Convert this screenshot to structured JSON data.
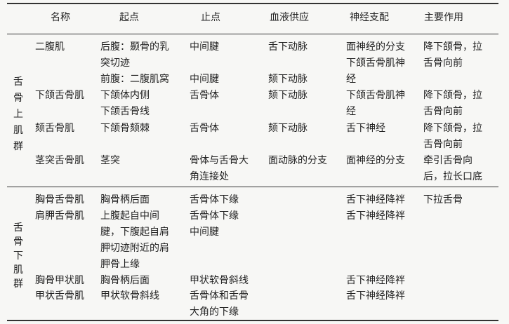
{
  "headers": [
    "名称",
    "起点",
    "止点",
    "血液供应",
    "神经支配",
    "主要作用"
  ],
  "groups": [
    {
      "label": [
        "舌",
        "骨",
        "上",
        "肌",
        "群"
      ],
      "rows": [
        {
          "name": "二腹肌",
          "origin": [
            "后腹：颞骨的乳",
            "突切迹",
            "前腹：二腹肌窝"
          ],
          "insertion": [
            "中间腱",
            "",
            "中间腱"
          ],
          "blood": [
            "舌下动脉",
            "",
            "颏下动脉"
          ],
          "nerve": [
            "面神经的分支",
            "下颌舌骨肌神",
            "经"
          ],
          "action": [
            "降下颌骨，拉",
            "舌骨向前"
          ]
        },
        {
          "name": "下颌舌骨肌",
          "origin": [
            "下颌体内侧",
            "下颌舌骨线"
          ],
          "insertion": [
            "舌骨体"
          ],
          "blood": [
            "颏下动脉"
          ],
          "nerve": [
            "下颌舌骨肌神",
            "经"
          ],
          "action": [
            "降下颌骨，拉",
            "舌骨向前"
          ]
        },
        {
          "name": "颏舌骨肌",
          "origin": [
            "下颌骨颏棘"
          ],
          "insertion": [
            "舌骨体"
          ],
          "blood": [
            "颏下动脉"
          ],
          "nerve": [
            "舌下神经"
          ],
          "action": [
            "降下颌骨，拉",
            "舌骨向前"
          ]
        },
        {
          "name": "茎突舌骨肌",
          "origin": [
            "茎突"
          ],
          "insertion": [
            "骨体与舌骨大",
            "角连接处"
          ],
          "blood": [
            "面动脉的分支"
          ],
          "nerve": [
            "面神经的分支"
          ],
          "action": [
            "牵引舌骨向",
            "后，拉长口底"
          ]
        }
      ]
    },
    {
      "label": [
        "舌",
        "骨",
        "下",
        "肌",
        "群"
      ],
      "rows": [
        {
          "name": "胸骨舌骨肌",
          "origin": [
            "胸骨柄后面"
          ],
          "insertion": [
            "舌骨体下缘"
          ],
          "blood": [],
          "nerve": [
            "舌下神经降袢"
          ],
          "action": [
            "下拉舌骨"
          ]
        },
        {
          "name": "肩胛舌骨肌",
          "origin": [
            "上腹起自中间",
            "腱，下腹起自肩",
            "胛切迹附近的肩",
            "胛骨上缘"
          ],
          "insertion": [
            "舌骨体下缘",
            "中间腱"
          ],
          "blood": [],
          "nerve": [
            "舌下神经降袢"
          ],
          "action": []
        },
        {
          "name": "胸骨甲状肌",
          "origin": [
            "胸骨柄后面"
          ],
          "insertion": [
            "甲状软骨斜线"
          ],
          "blood": [],
          "nerve": [
            "舌下神经降袢"
          ],
          "action": []
        },
        {
          "name": "甲状舌骨肌",
          "origin": [
            "甲状软骨斜线"
          ],
          "insertion": [
            "舌骨体和舌骨",
            "大角的下缘"
          ],
          "blood": [],
          "nerve": [
            "舌下神经降袢"
          ],
          "action": []
        }
      ]
    }
  ]
}
